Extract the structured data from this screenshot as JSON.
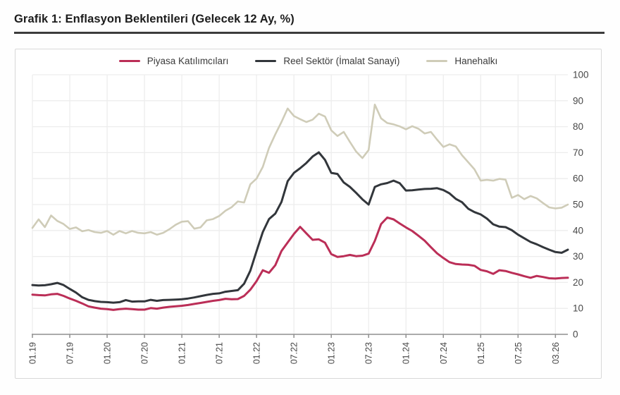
{
  "page": {
    "title": "Grafik 1: Enflasyon Beklentileri (Gelecek 12 Ay, %)"
  },
  "chart_data": {
    "type": "line",
    "title": "Grafik 1: Enflasyon Beklentileri (Gelecek 12 Ay, %)",
    "xlabel": "",
    "ylabel": "",
    "ylim": [
      0,
      100
    ],
    "y_ticks": [
      0,
      10,
      20,
      30,
      40,
      50,
      60,
      70,
      80,
      90,
      100
    ],
    "y_axis_side": "right",
    "grid": true,
    "legend_position": "top",
    "x_unit": "monthly, 01.2019 - 03.2026",
    "x_tick_labels": [
      "01.19",
      "07.19",
      "01.20",
      "07.20",
      "01.21",
      "07.21",
      "01.22",
      "07.22",
      "01.23",
      "07.23",
      "01.24",
      "07.24",
      "01.25",
      "07.25",
      "03.26"
    ],
    "x_tick_month_indices": [
      0,
      6,
      12,
      18,
      24,
      30,
      36,
      42,
      48,
      54,
      60,
      66,
      72,
      78,
      84
    ],
    "series": [
      {
        "name": "Piyasa Katılımcıları",
        "color": "#bb2e57",
        "stroke_width": 3,
        "values": [
          15.3,
          15.1,
          15.0,
          15.4,
          15.6,
          14.8,
          13.8,
          12.9,
          11.9,
          10.8,
          10.3,
          9.9,
          9.7,
          9.4,
          9.7,
          9.9,
          9.7,
          9.5,
          9.5,
          10.1,
          9.9,
          10.3,
          10.6,
          10.8,
          11.0,
          11.3,
          11.7,
          12.1,
          12.5,
          12.9,
          13.2,
          13.7,
          13.5,
          13.6,
          14.8,
          17.2,
          20.5,
          24.7,
          23.7,
          26.6,
          32.1,
          35.4,
          38.7,
          41.4,
          38.9,
          36.4,
          36.6,
          35.3,
          30.9,
          29.8,
          30.1,
          30.6,
          30.1,
          30.3,
          31.1,
          36.0,
          42.5,
          45.0,
          44.3,
          42.7,
          41.2,
          39.8,
          38.0,
          36.1,
          33.6,
          31.2,
          29.4,
          27.8,
          27.1,
          26.9,
          26.8,
          26.4,
          24.8,
          24.3,
          23.3,
          24.7,
          24.4,
          23.7,
          23.1,
          22.4,
          21.8,
          22.5,
          22.1,
          21.6,
          21.5,
          21.7,
          21.8
        ]
      },
      {
        "name": "Reel Sektör (İmalat Sanayi)",
        "color": "#32363b",
        "stroke_width": 3,
        "values": [
          19.0,
          18.8,
          18.9,
          19.3,
          19.8,
          19.0,
          17.5,
          16.1,
          14.3,
          13.3,
          12.8,
          12.5,
          12.4,
          12.2,
          12.4,
          13.2,
          12.6,
          12.7,
          12.7,
          13.3,
          12.9,
          13.2,
          13.3,
          13.4,
          13.5,
          13.8,
          14.2,
          14.7,
          15.2,
          15.6,
          15.8,
          16.4,
          16.7,
          17.0,
          19.5,
          24.5,
          32.0,
          39.4,
          44.4,
          46.5,
          51.0,
          59.0,
          62.2,
          64.0,
          66.0,
          68.5,
          70.1,
          67.2,
          62.2,
          61.8,
          58.5,
          56.8,
          54.5,
          52.0,
          50.0,
          56.8,
          57.8,
          58.3,
          59.2,
          58.2,
          55.4,
          55.5,
          55.8,
          56.0,
          56.1,
          56.3,
          55.6,
          54.3,
          52.2,
          50.9,
          48.4,
          47.1,
          46.2,
          44.6,
          42.4,
          41.5,
          41.3,
          40.1,
          38.4,
          37.0,
          35.6,
          34.7,
          33.6,
          32.6,
          31.7,
          31.4,
          32.6
        ]
      },
      {
        "name": "Hanehalkı",
        "color": "#cfccb8",
        "stroke_width": 2.6,
        "values": [
          41.0,
          44.3,
          41.3,
          45.8,
          43.7,
          42.5,
          40.6,
          41.2,
          39.7,
          40.2,
          39.4,
          39.1,
          39.8,
          38.4,
          39.8,
          38.9,
          39.8,
          39.1,
          38.9,
          39.4,
          38.4,
          39.1,
          40.5,
          42.2,
          43.4,
          43.6,
          40.7,
          41.2,
          43.9,
          44.4,
          45.6,
          47.6,
          49.0,
          51.2,
          50.8,
          57.8,
          60.0,
          64.5,
          71.8,
          77.0,
          81.8,
          87.0,
          84.1,
          82.9,
          81.8,
          82.7,
          85.0,
          83.9,
          78.6,
          76.4,
          78.0,
          74.1,
          70.4,
          67.9,
          71.0,
          88.5,
          83.2,
          81.4,
          80.9,
          80.1,
          79.0,
          80.2,
          79.2,
          77.4,
          78.0,
          75.0,
          72.2,
          73.2,
          72.4,
          69.0,
          66.3,
          63.6,
          59.2,
          59.5,
          59.2,
          59.9,
          59.6,
          52.6,
          53.7,
          52.1,
          53.3,
          52.4,
          50.6,
          48.9,
          48.5,
          48.8,
          50.0
        ]
      }
    ]
  },
  "colors": {
    "gridline": "#ededed",
    "axis": "#8f8f8f",
    "tick_label": "#474747",
    "card_border": "#d8d8d8",
    "title_rule": "#3c3c3c"
  }
}
